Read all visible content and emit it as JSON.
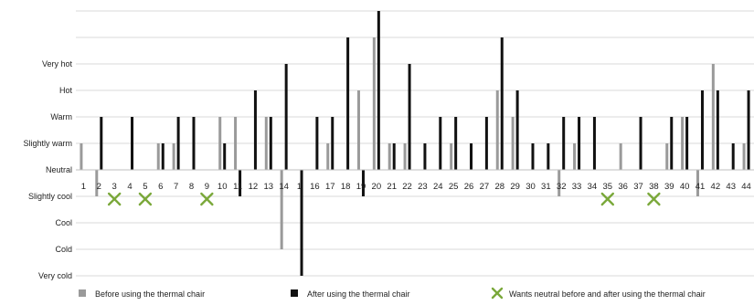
{
  "chart_data": {
    "type": "bar",
    "title": "",
    "xlabel": "",
    "ylabel": "",
    "y_levels": [
      "Very cold",
      "Cold",
      "Cool",
      "Slightly cool",
      "Neutral",
      "Slightly warm",
      "Warm",
      "Hot",
      "Very hot"
    ],
    "y_level_values": [
      -4,
      -3,
      -2,
      -1,
      0,
      1,
      2,
      3,
      4
    ],
    "ylim": [
      -4,
      6
    ],
    "grid": "horizontal",
    "categories": [
      "1",
      "2",
      "3",
      "4",
      "5",
      "6",
      "7",
      "8",
      "9",
      "10",
      "11",
      "12",
      "13",
      "14",
      "15",
      "16",
      "17",
      "18",
      "19",
      "20",
      "21",
      "22",
      "23",
      "24",
      "25",
      "26",
      "27",
      "28",
      "29",
      "30",
      "31",
      "32",
      "33",
      "34",
      "35",
      "36",
      "37",
      "38",
      "39",
      "40",
      "41",
      "42",
      "43",
      "44"
    ],
    "category_labels_shown": [
      "1",
      "2",
      "3",
      "4",
      "5",
      "6",
      "7",
      "8",
      "9",
      "10",
      "11",
      "12",
      "13",
      "14",
      "1",
      "16",
      "17",
      "18",
      "19",
      "20",
      "21",
      "22",
      "23",
      "24",
      "25",
      "26",
      "27",
      "28",
      "29",
      "30",
      "31",
      "32",
      "33",
      "34",
      "35",
      "36",
      "37",
      "38",
      "39",
      "40",
      "41",
      "42",
      "43",
      "44"
    ],
    "series": [
      {
        "name": "Before using the thermal chair",
        "color": "#9a9a9a",
        "values": [
          1,
          -1,
          0,
          0,
          0,
          1,
          1,
          0,
          0,
          2,
          2,
          0,
          2,
          -3,
          0,
          0,
          1,
          0,
          3,
          5,
          1,
          1,
          0,
          0,
          1,
          0,
          0,
          3,
          2,
          0,
          0,
          -1,
          1,
          0,
          0,
          1,
          0,
          0,
          1,
          2,
          -1,
          4,
          0,
          1
        ]
      },
      {
        "name": "After using the thermal chair",
        "color": "#111111",
        "values": [
          0,
          2,
          0,
          2,
          0,
          1,
          2,
          2,
          0,
          1,
          -1,
          3,
          2,
          4,
          -4,
          2,
          2,
          5,
          -1,
          6,
          1,
          4,
          1,
          2,
          2,
          1,
          2,
          5,
          3,
          1,
          1,
          2,
          2,
          2,
          0,
          0,
          2,
          0,
          2,
          2,
          3,
          3,
          1,
          3
        ]
      }
    ],
    "markers": {
      "name": "Wants neutral before and after using the thermal chair",
      "color": "#7aa83a",
      "categories": [
        "3",
        "5",
        "9",
        "35",
        "38"
      ]
    },
    "legend_position": "bottom"
  }
}
